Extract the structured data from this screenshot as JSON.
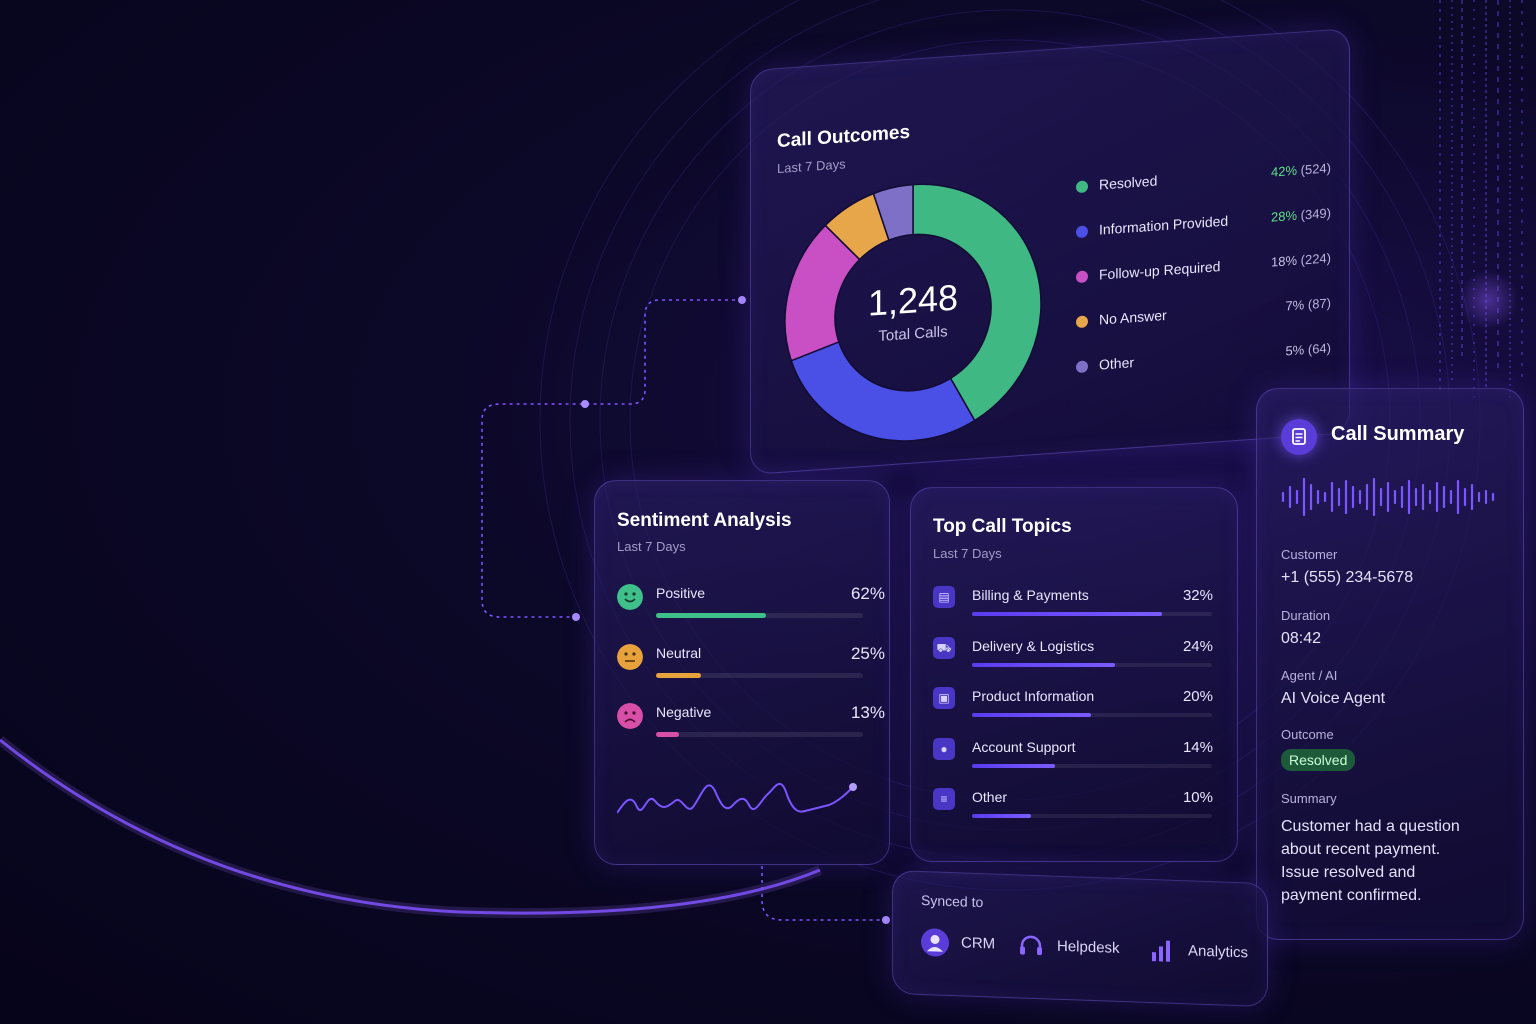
{
  "call_outcomes": {
    "title": "Call Outcomes",
    "subtitle": "Last 7 Days",
    "total_value": "1,248",
    "total_label": "Total Calls",
    "items": [
      {
        "label": "Resolved",
        "pct": "42%",
        "count": "(524)",
        "value": 42,
        "color": "#3fb884"
      },
      {
        "label": "Information Provided",
        "pct": "28%",
        "count": "(349)",
        "value": 28,
        "color": "#4a4fe6"
      },
      {
        "label": "Follow-up Required",
        "pct": "18%",
        "count": "(224)",
        "value": 18,
        "color": "#c94fc4"
      },
      {
        "label": "No Answer",
        "pct": "7%",
        "count": "(87)",
        "value": 7,
        "color": "#e8a64a"
      },
      {
        "label": "Other",
        "pct": "5%",
        "count": "(64)",
        "value": 5,
        "color": "#7d70c6"
      }
    ]
  },
  "sentiment": {
    "title": "Sentiment Analysis",
    "subtitle": "Last 7 Days",
    "items": [
      {
        "label": "Positive",
        "pct": "62%",
        "value": 62,
        "color": "#3fc08a"
      },
      {
        "label": "Neutral",
        "pct": "25%",
        "value": 25,
        "color": "#e8a23c"
      },
      {
        "label": "Negative",
        "pct": "13%",
        "value": 13,
        "color": "#d84fa8"
      }
    ]
  },
  "topics": {
    "title": "Top Call Topics",
    "subtitle": "Last 7 Days",
    "items": [
      {
        "label": "Billing & Payments",
        "pct": "32%",
        "value": 32,
        "icon": "billing-icon"
      },
      {
        "label": "Delivery & Logistics",
        "pct": "24%",
        "value": 24,
        "icon": "truck-icon"
      },
      {
        "label": "Product Information",
        "pct": "20%",
        "value": 20,
        "icon": "product-icon"
      },
      {
        "label": "Account Support",
        "pct": "14%",
        "value": 14,
        "icon": "user-icon"
      },
      {
        "label": "Other",
        "pct": "10%",
        "value": 10,
        "icon": "list-icon"
      }
    ]
  },
  "summary": {
    "title": "Call Summary",
    "customer_label": "Customer",
    "customer_value": "+1 (555) 234-5678",
    "duration_label": "Duration",
    "duration_value": "08:42",
    "agent_label": "Agent / AI",
    "agent_value": "AI Voice Agent",
    "outcome_label": "Outcome",
    "outcome_value": "Resolved",
    "summary_label": "Summary",
    "summary_lines": [
      "Customer had a question",
      "about recent payment.",
      "Issue resolved and",
      "payment confirmed."
    ]
  },
  "synced": {
    "title": "Synced to",
    "items": [
      {
        "label": "CRM",
        "icon": "user-circle-icon"
      },
      {
        "label": "Helpdesk",
        "icon": "headset-icon"
      },
      {
        "label": "Analytics",
        "icon": "bar-chart-icon"
      }
    ]
  },
  "colors": {
    "accent": "#7b5cff",
    "background": "#08051e"
  }
}
